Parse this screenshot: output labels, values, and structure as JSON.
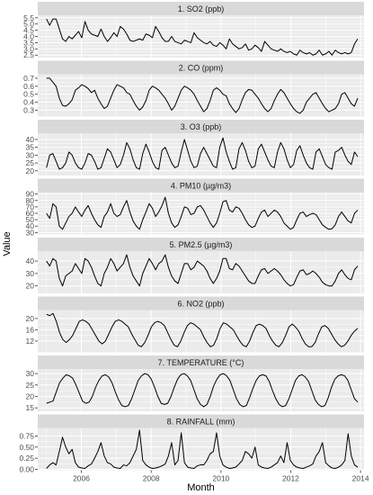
{
  "chart_data": {
    "type": "line",
    "layout": "facets",
    "x_axis_title": "Month",
    "y_axis_title": "Value",
    "x_ticks": [
      "2006",
      "2008",
      "2010",
      "2012",
      "2014"
    ],
    "x_tick_years": [
      2006,
      2008,
      2010,
      2012,
      2014
    ],
    "x_range": [
      2004.75,
      2014.1
    ],
    "grid": true,
    "facets": [
      {
        "title": "1. SO2 (ppb)",
        "ylim": [
          2.3,
          5.7
        ],
        "y_ticks": [
          "2.5",
          "3.0",
          "3.5",
          "4.0",
          "4.5",
          "5.0",
          "5.5"
        ],
        "y_tick_values": [
          2.5,
          3.0,
          3.5,
          4.0,
          4.5,
          5.0,
          5.5
        ],
        "values": [
          5.4,
          4.9,
          5.4,
          5.4,
          4.6,
          3.8,
          3.6,
          4.0,
          3.8,
          4.1,
          4.4,
          3.9,
          5.2,
          4.5,
          4.2,
          4.1,
          4.0,
          4.6,
          4.0,
          3.6,
          3.9,
          4.3,
          4.0,
          4.8,
          4.6,
          4.2,
          3.7,
          3.6,
          3.7,
          3.8,
          3.7,
          4.2,
          4.1,
          3.9,
          4.8,
          4.4,
          3.9,
          3.6,
          3.6,
          4.0,
          3.6,
          3.5,
          3.4,
          3.7,
          3.6,
          3.5,
          4.3,
          3.9,
          3.7,
          3.5,
          3.4,
          3.6,
          3.3,
          3.2,
          3.5,
          3.3,
          3.0,
          3.8,
          3.4,
          3.2,
          3.0,
          3.1,
          3.4,
          2.9,
          3.0,
          3.3,
          3.1,
          2.8,
          3.6,
          3.3,
          3.0,
          2.9,
          2.8,
          3.0,
          2.8,
          2.7,
          2.8,
          2.6,
          2.5,
          2.9,
          2.7,
          2.6,
          2.7,
          2.5,
          2.6,
          2.9,
          2.5,
          2.6,
          2.8,
          2.5,
          2.9,
          2.7,
          2.6,
          2.7,
          2.6,
          2.7,
          3.4,
          3.8
        ]
      },
      {
        "title": "2. CO (ppm)",
        "ylim": [
          0.22,
          0.75
        ],
        "y_ticks": [
          "0.3",
          "0.4",
          "0.5",
          "0.6",
          "0.7"
        ],
        "y_tick_values": [
          0.3,
          0.4,
          0.5,
          0.6,
          0.7
        ],
        "values": [
          0.7,
          0.7,
          0.65,
          0.6,
          0.45,
          0.36,
          0.35,
          0.38,
          0.43,
          0.55,
          0.58,
          0.62,
          0.6,
          0.57,
          0.52,
          0.55,
          0.45,
          0.38,
          0.32,
          0.35,
          0.45,
          0.55,
          0.62,
          0.6,
          0.58,
          0.52,
          0.5,
          0.42,
          0.35,
          0.3,
          0.34,
          0.42,
          0.55,
          0.6,
          0.58,
          0.55,
          0.5,
          0.45,
          0.38,
          0.3,
          0.35,
          0.45,
          0.55,
          0.6,
          0.58,
          0.55,
          0.5,
          0.42,
          0.35,
          0.28,
          0.32,
          0.42,
          0.55,
          0.58,
          0.55,
          0.5,
          0.48,
          0.38,
          0.32,
          0.27,
          0.32,
          0.43,
          0.52,
          0.56,
          0.55,
          0.5,
          0.45,
          0.38,
          0.32,
          0.28,
          0.32,
          0.42,
          0.5,
          0.56,
          0.52,
          0.45,
          0.38,
          0.32,
          0.28,
          0.26,
          0.3,
          0.4,
          0.45,
          0.5,
          0.52,
          0.45,
          0.38,
          0.32,
          0.28,
          0.3,
          0.32,
          0.38,
          0.5,
          0.52,
          0.45,
          0.38,
          0.35,
          0.45
        ]
      },
      {
        "title": "3. O3 (ppb)",
        "ylim": [
          17,
          44
        ],
        "y_ticks": [
          "20",
          "25",
          "30",
          "35",
          "40"
        ],
        "y_tick_values": [
          20,
          25,
          30,
          35,
          40
        ],
        "values": [
          22,
          30,
          31,
          26,
          21,
          22,
          25,
          32,
          30,
          25,
          22,
          21,
          25,
          31,
          30,
          26,
          21,
          22,
          28,
          34,
          32,
          27,
          22,
          24,
          30,
          38,
          34,
          27,
          22,
          21,
          31,
          37,
          32,
          26,
          22,
          21,
          33,
          35,
          30,
          25,
          22,
          23,
          32,
          40,
          33,
          26,
          22,
          23,
          31,
          35,
          31,
          27,
          23,
          22,
          35,
          41,
          32,
          26,
          21,
          22,
          34,
          38,
          33,
          26,
          22,
          23,
          34,
          37,
          32,
          27,
          23,
          22,
          32,
          38,
          34,
          27,
          22,
          24,
          33,
          36,
          30,
          25,
          22,
          21,
          32,
          34,
          29,
          24,
          22,
          21,
          32,
          33,
          35,
          30,
          26,
          24,
          32,
          29
        ]
      },
      {
        "title": "4. PM10 (µg/m3)",
        "ylim": [
          27,
          93
        ],
        "y_ticks": [
          "30",
          "40",
          "50",
          "60",
          "70",
          "80",
          "90"
        ],
        "y_tick_values": [
          30,
          40,
          50,
          60,
          70,
          80,
          90
        ],
        "values": [
          60,
          52,
          75,
          70,
          40,
          35,
          45,
          55,
          60,
          70,
          62,
          55,
          65,
          72,
          60,
          50,
          42,
          38,
          55,
          62,
          75,
          60,
          55,
          58,
          70,
          80,
          62,
          48,
          40,
          35,
          50,
          62,
          75,
          68,
          55,
          62,
          72,
          85,
          60,
          45,
          38,
          42,
          55,
          70,
          68,
          58,
          60,
          70,
          72,
          65,
          55,
          45,
          38,
          45,
          60,
          78,
          80,
          65,
          62,
          70,
          68,
          60,
          50,
          42,
          38,
          40,
          52,
          62,
          65,
          55,
          60,
          65,
          62,
          55,
          45,
          40,
          35,
          38,
          50,
          60,
          62,
          55,
          58,
          60,
          58,
          50,
          42,
          38,
          35,
          36,
          42,
          55,
          62,
          55,
          48,
          45,
          60,
          65
        ]
      },
      {
        "title": "5. PM2.5 (µg/m3)",
        "ylim": [
          14,
          48
        ],
        "y_ticks": [
          "20",
          "30",
          "40"
        ],
        "y_tick_values": [
          20,
          30,
          40
        ],
        "values": [
          40,
          36,
          42,
          40,
          26,
          20,
          28,
          30,
          32,
          38,
          34,
          30,
          42,
          40,
          35,
          28,
          22,
          20,
          30,
          35,
          42,
          38,
          32,
          35,
          38,
          45,
          35,
          28,
          24,
          20,
          30,
          36,
          42,
          38,
          33,
          38,
          40,
          45,
          35,
          28,
          24,
          22,
          30,
          38,
          38,
          33,
          35,
          40,
          38,
          36,
          32,
          26,
          22,
          26,
          32,
          42,
          42,
          34,
          33,
          38,
          36,
          32,
          28,
          24,
          22,
          22,
          28,
          33,
          34,
          30,
          32,
          34,
          32,
          29,
          25,
          22,
          20,
          21,
          27,
          32,
          33,
          29,
          30,
          32,
          30,
          27,
          23,
          21,
          20,
          20,
          24,
          30,
          33,
          29,
          26,
          25,
          33,
          36
        ]
      },
      {
        "title": "6. NO2 (ppb)",
        "ylim": [
          8,
          23
        ],
        "y_ticks": [
          "12",
          "16",
          "20"
        ],
        "y_tick_values": [
          12,
          16,
          20
        ],
        "values": [
          21.5,
          21,
          21.8,
          19,
          15,
          12.5,
          11.5,
          12.5,
          14,
          16.5,
          19,
          19.5,
          19,
          18,
          16,
          14,
          12,
          11,
          12,
          14.5,
          17,
          19,
          19.5,
          19,
          18,
          17,
          14.5,
          12.5,
          10.5,
          10,
          11.5,
          14,
          17,
          18.5,
          19,
          18.5,
          17.5,
          15,
          12.5,
          10.5,
          10,
          12,
          15,
          17.5,
          18.5,
          18,
          17,
          16,
          13.5,
          11.5,
          10,
          10.5,
          13,
          16.5,
          18.5,
          18,
          17,
          16,
          14,
          12,
          10.5,
          10,
          12,
          15,
          17.5,
          18,
          17.5,
          16.5,
          14,
          12,
          10.5,
          10,
          11.5,
          14,
          17,
          18,
          17,
          15.5,
          13,
          11,
          10,
          10,
          11.5,
          14.5,
          17,
          17.5,
          16.5,
          14.5,
          12.5,
          11,
          10,
          10.5,
          12,
          14,
          15.5,
          16.5
        ]
      },
      {
        "title": "7. TEMPERATURE (°C)",
        "ylim": [
          13.5,
          32
        ],
        "y_ticks": [
          "15",
          "20",
          "25",
          "30"
        ],
        "y_tick_values": [
          15,
          20,
          25,
          30
        ],
        "values": [
          17,
          17.5,
          18,
          22,
          26,
          28,
          29.5,
          29,
          28,
          25,
          21.5,
          18,
          17,
          17.5,
          20,
          24,
          27,
          29,
          29.5,
          28.5,
          26,
          22,
          18.5,
          16,
          15.5,
          16,
          19,
          23,
          27,
          29,
          30,
          29.5,
          27.5,
          24,
          20,
          17,
          16.5,
          17,
          20,
          24,
          27.5,
          29.5,
          30,
          29,
          27,
          23,
          19,
          16.5,
          15.5,
          16.5,
          20,
          24.5,
          27.5,
          29.5,
          30,
          29,
          27,
          23,
          19,
          16.5,
          15.5,
          16,
          19.5,
          23.5,
          27,
          29,
          29.5,
          29,
          26.5,
          22.5,
          19,
          16.5,
          15.5,
          16,
          19,
          23,
          27,
          29,
          29.5,
          28.5,
          26.5,
          22.5,
          18.5,
          16.5,
          15.5,
          16,
          19.5,
          24,
          27.5,
          29,
          29.5,
          29,
          27,
          23,
          19,
          17.5
        ]
      },
      {
        "title": "8. RAINFALL (mm)",
        "ylim": [
          -0.02,
          0.93
        ],
        "y_ticks": [
          "0.00",
          "0.25",
          "0.50",
          "0.75"
        ],
        "y_tick_values": [
          0,
          0.25,
          0.5,
          0.75
        ],
        "values": [
          0.02,
          0.1,
          0.15,
          0.1,
          0.4,
          0.72,
          0.5,
          0.35,
          0.45,
          0.15,
          0.05,
          0.03,
          0.02,
          0.08,
          0.12,
          0.25,
          0.4,
          0.6,
          0.3,
          0.15,
          0.12,
          0.05,
          0.03,
          0.02,
          0.1,
          0.08,
          0.15,
          0.3,
          0.45,
          0.88,
          0.2,
          0.1,
          0.05,
          0.02,
          0.03,
          0.05,
          0.08,
          0.12,
          0.3,
          0.6,
          0.1,
          0.2,
          0.82,
          0.15,
          0.05,
          0.03,
          0.02,
          0.08,
          0.1,
          0.1,
          0.2,
          0.35,
          0.4,
          0.82,
          0.3,
          0.1,
          0.05,
          0.02,
          0.03,
          0.05,
          0.12,
          0.2,
          0.4,
          0.35,
          0.25,
          0.5,
          0.1,
          0.05,
          0.03,
          0.02,
          0.05,
          0.1,
          0.15,
          0.3,
          0.15,
          0.6,
          0.2,
          0.1,
          0.05,
          0.03,
          0.02,
          0.05,
          0.08,
          0.12,
          0.3,
          0.4,
          0.6,
          0.15,
          0.08,
          0.03,
          0.02,
          0.05,
          0.1,
          0.2,
          0.8,
          0.3,
          0.1,
          0.05
        ]
      }
    ]
  }
}
